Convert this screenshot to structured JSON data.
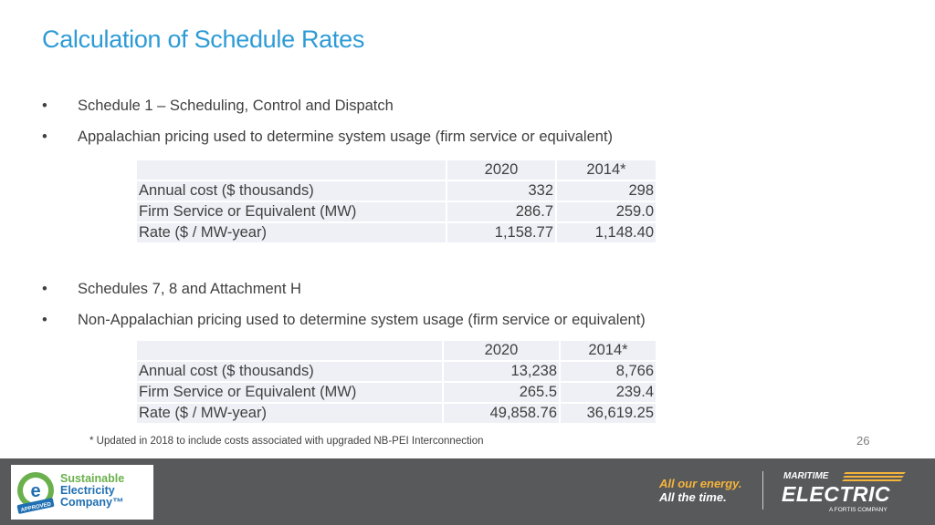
{
  "title": "Calculation of Schedule Rates",
  "section1": {
    "bullets": [
      "Schedule 1 – Scheduling, Control and Dispatch",
      "Appalachian pricing used to determine system usage (firm service or equivalent)"
    ],
    "table": {
      "headers": [
        "",
        "2020",
        "2014*"
      ],
      "rows": [
        [
          "Annual cost ($ thousands)",
          "332",
          "298"
        ],
        [
          "Firm Service or Equivalent (MW)",
          "286.7",
          "259.0"
        ],
        [
          "Rate ($ / MW-year)",
          "1,158.77",
          "1,148.40"
        ]
      ]
    }
  },
  "section2": {
    "bullets": [
      "Schedules 7, 8 and Attachment H",
      "Non-Appalachian pricing used to determine system usage (firm service or equivalent)"
    ],
    "table": {
      "headers": [
        "",
        "2020",
        "2014*"
      ],
      "rows": [
        [
          "Annual cost ($ thousands)",
          "13,238",
          "8,766"
        ],
        [
          "Firm Service or Equivalent (MW)",
          "265.5",
          "239.4"
        ],
        [
          "Rate ($ / MW-year)",
          "49,858.76",
          "36,619.25"
        ]
      ]
    }
  },
  "footnote": "* Updated in 2018 to include costs associated with upgraded NB-PEI Interconnection",
  "page_number": "26",
  "footer": {
    "sec_logo": {
      "line1": "Sustainable",
      "line2": "Electricity",
      "line3": "Company™",
      "badge_letter": "e",
      "badge_label": "APPROVED"
    },
    "tagline_line1": "All our energy.",
    "tagline_line2": "All the time.",
    "brand_top": "MARITIME",
    "brand_main": "ELECTRIC",
    "brand_sub": "A FORTIS COMPANY"
  },
  "colors": {
    "title": "#2e9bd6",
    "table_cell_bg": "#eef0f5",
    "footer_bg": "#58595b"
  }
}
